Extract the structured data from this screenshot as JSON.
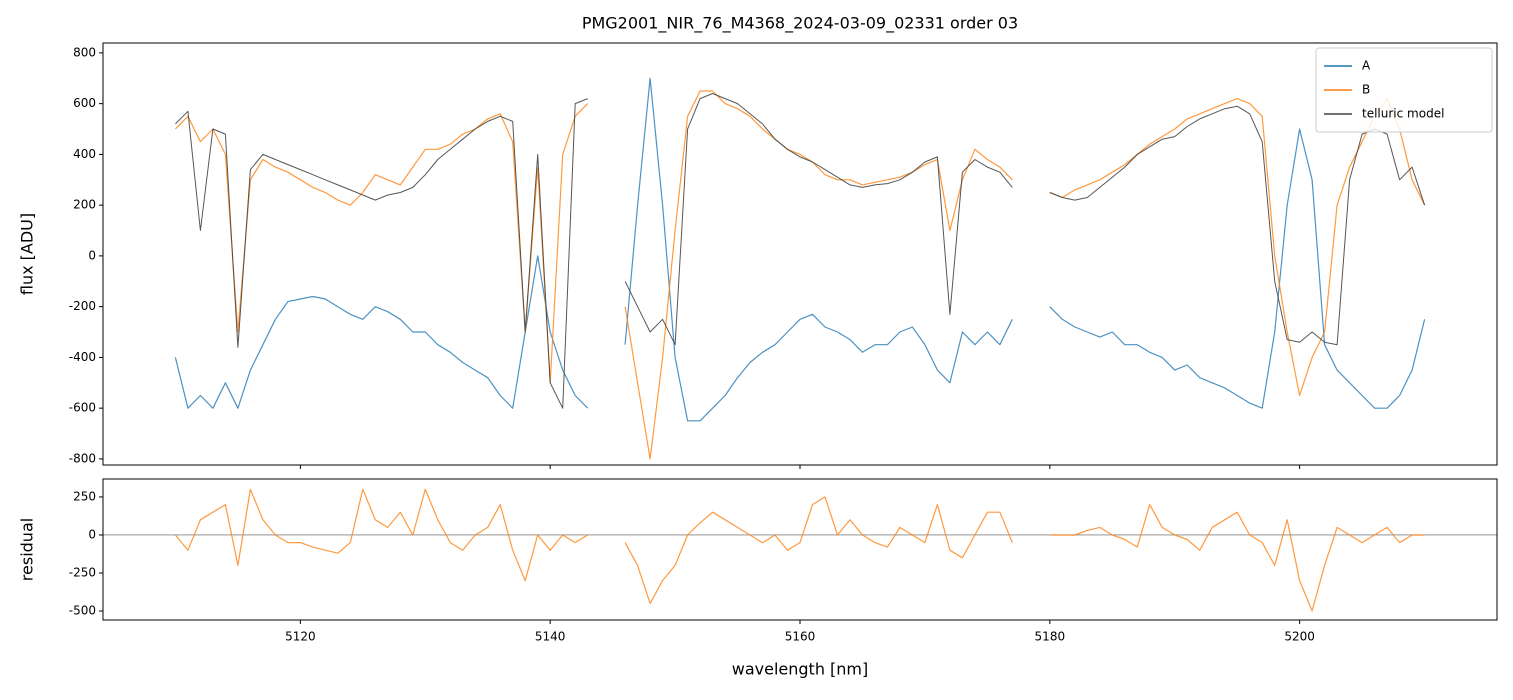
{
  "chart_data": [
    {
      "type": "line",
      "title": "PMG2001_NIR_76_M4368_2024-03-09_02331  order 03",
      "y_label": "flux [ADU]",
      "x": [
        5110,
        5111,
        5112,
        5113,
        5114,
        5115,
        5116,
        5117,
        5118,
        5119,
        5120,
        5121,
        5122,
        5123,
        5124,
        5125,
        5126,
        5127,
        5128,
        5129,
        5130,
        5131,
        5132,
        5133,
        5134,
        5135,
        5136,
        5137,
        5138,
        5139,
        5140,
        5141,
        5142,
        5143,
        5144,
        5145,
        5146,
        5147,
        5148,
        5149,
        5150,
        5151,
        5152,
        5153,
        5154,
        5155,
        5156,
        5157,
        5158,
        5159,
        5160,
        5161,
        5162,
        5163,
        5164,
        5165,
        5166,
        5167,
        5168,
        5169,
        5170,
        5171,
        5172,
        5173,
        5174,
        5175,
        5176,
        5177,
        5178,
        5179,
        5180,
        5181,
        5182,
        5183,
        5184,
        5185,
        5186,
        5187,
        5188,
        5189,
        5190,
        5191,
        5192,
        5193,
        5194,
        5195,
        5196,
        5197,
        5198,
        5199,
        5200,
        5201,
        5202,
        5203,
        5204,
        5205,
        5206,
        5207,
        5208,
        5209,
        5210
      ],
      "series": [
        {
          "name": "A",
          "color": "#1f77b4",
          "values": [
            -400,
            -600,
            -550,
            -600,
            -500,
            -600,
            -450,
            -350,
            -250,
            -180,
            -170,
            -160,
            -170,
            -200,
            -230,
            -250,
            -200,
            -220,
            -250,
            -300,
            -300,
            -350,
            -380,
            -420,
            -450,
            -480,
            -550,
            -600,
            -300,
            0,
            -300,
            -450,
            -550,
            -600,
            null,
            null,
            -350,
            200,
            700,
            200,
            -400,
            -650,
            -650,
            -600,
            -550,
            -480,
            -420,
            -380,
            -350,
            -300,
            -250,
            -230,
            -280,
            -300,
            -330,
            -380,
            -350,
            -350,
            -300,
            -280,
            -350,
            -450,
            -500,
            -300,
            -350,
            -300,
            -350,
            -250,
            null,
            null,
            -200,
            -250,
            -280,
            -300,
            -320,
            -300,
            -350,
            -350,
            -380,
            -400,
            -450,
            -430,
            -480,
            -500,
            -520,
            -550,
            -580,
            -600,
            -300,
            200,
            500,
            300,
            -350,
            -450,
            -500,
            -550,
            -600,
            -600,
            -550,
            -450,
            -250
          ]
        },
        {
          "name": "B",
          "color": "#ff7f0e",
          "values": [
            500,
            550,
            450,
            500,
            400,
            -300,
            300,
            380,
            350,
            330,
            300,
            270,
            250,
            220,
            200,
            250,
            320,
            300,
            280,
            350,
            420,
            420,
            440,
            480,
            500,
            540,
            560,
            450,
            -300,
            350,
            -500,
            400,
            550,
            600,
            null,
            null,
            -200,
            -500,
            -800,
            -400,
            100,
            550,
            650,
            650,
            600,
            580,
            550,
            500,
            460,
            420,
            400,
            370,
            320,
            300,
            300,
            280,
            290,
            300,
            310,
            330,
            360,
            380,
            100,
            300,
            420,
            380,
            350,
            300,
            null,
            null,
            250,
            230,
            260,
            280,
            300,
            330,
            360,
            400,
            440,
            470,
            500,
            540,
            560,
            580,
            600,
            620,
            600,
            550,
            0,
            -300,
            -550,
            -400,
            -300,
            200,
            350,
            450,
            550,
            620,
            500,
            300,
            200
          ]
        },
        {
          "name": "telluric model",
          "color": "#444444",
          "values": [
            520,
            570,
            100,
            500,
            480,
            -360,
            340,
            400,
            380,
            360,
            340,
            320,
            300,
            280,
            260,
            240,
            220,
            240,
            250,
            270,
            320,
            380,
            420,
            460,
            500,
            530,
            550,
            530,
            -300,
            400,
            -500,
            -600,
            600,
            620,
            null,
            null,
            -100,
            -200,
            -300,
            -250,
            -350,
            500,
            620,
            640,
            620,
            600,
            560,
            520,
            460,
            420,
            390,
            370,
            340,
            310,
            280,
            270,
            280,
            285,
            300,
            330,
            370,
            390,
            -230,
            330,
            380,
            350,
            330,
            270,
            null,
            null,
            250,
            230,
            220,
            230,
            270,
            310,
            350,
            400,
            430,
            460,
            470,
            510,
            540,
            560,
            580,
            590,
            560,
            450,
            -100,
            -330,
            -340,
            -300,
            -340,
            -350,
            300,
            480,
            500,
            480,
            300,
            350,
            200
          ]
        }
      ],
      "xlim": [
        5104.2,
        5215.8
      ],
      "xticks": [
        5120,
        5140,
        5160,
        5180,
        5200
      ],
      "ylim": [
        -824,
        839
      ],
      "yticks": [
        -800,
        -600,
        -400,
        -200,
        0,
        200,
        400,
        600,
        800
      ],
      "legend": "upper right"
    },
    {
      "type": "line",
      "y_label": "residual",
      "x_label": "wavelength [nm]",
      "x": [
        5110,
        5111,
        5112,
        5113,
        5114,
        5115,
        5116,
        5117,
        5118,
        5119,
        5120,
        5121,
        5122,
        5123,
        5124,
        5125,
        5126,
        5127,
        5128,
        5129,
        5130,
        5131,
        5132,
        5133,
        5134,
        5135,
        5136,
        5137,
        5138,
        5139,
        5140,
        5141,
        5142,
        5143,
        5144,
        5145,
        5146,
        5147,
        5148,
        5149,
        5150,
        5151,
        5152,
        5153,
        5154,
        5155,
        5156,
        5157,
        5158,
        5159,
        5160,
        5161,
        5162,
        5163,
        5164,
        5165,
        5166,
        5167,
        5168,
        5169,
        5170,
        5171,
        5172,
        5173,
        5174,
        5175,
        5176,
        5177,
        5178,
        5179,
        5180,
        5181,
        5182,
        5183,
        5184,
        5185,
        5186,
        5187,
        5188,
        5189,
        5190,
        5191,
        5192,
        5193,
        5194,
        5195,
        5196,
        5197,
        5198,
        5199,
        5200,
        5201,
        5202,
        5203,
        5204,
        5205,
        5206,
        5207,
        5208,
        5209,
        5210
      ],
      "series": [
        {
          "color": "#ff7f0e",
          "values": [
            0,
            -100,
            100,
            150,
            200,
            -200,
            300,
            100,
            0,
            -50,
            -50,
            -80,
            -100,
            -120,
            -50,
            300,
            100,
            50,
            150,
            0,
            300,
            100,
            -50,
            -100,
            0,
            50,
            200,
            -100,
            -300,
            0,
            -100,
            0,
            -50,
            0,
            null,
            null,
            -50,
            -200,
            -450,
            -300,
            -200,
            0,
            80,
            150,
            100,
            50,
            0,
            -50,
            0,
            -100,
            -50,
            200,
            250,
            0,
            100,
            0,
            -50,
            -80,
            50,
            0,
            -50,
            200,
            -100,
            -150,
            0,
            150,
            150,
            -50,
            null,
            null,
            0,
            0,
            0,
            30,
            50,
            0,
            -30,
            -80,
            200,
            50,
            0,
            -30,
            -100,
            50,
            100,
            150,
            0,
            -50,
            -200,
            100,
            -300,
            -500,
            -200,
            50,
            0,
            -50,
            0,
            50,
            -50,
            0,
            0
          ]
        }
      ],
      "hline": 0,
      "xlim": [
        5104.2,
        5215.8
      ],
      "xticks": [
        5120,
        5140,
        5160,
        5180,
        5200
      ],
      "ylim": [
        -559,
        368
      ],
      "yticks": [
        -500,
        -250,
        0,
        250
      ]
    }
  ]
}
